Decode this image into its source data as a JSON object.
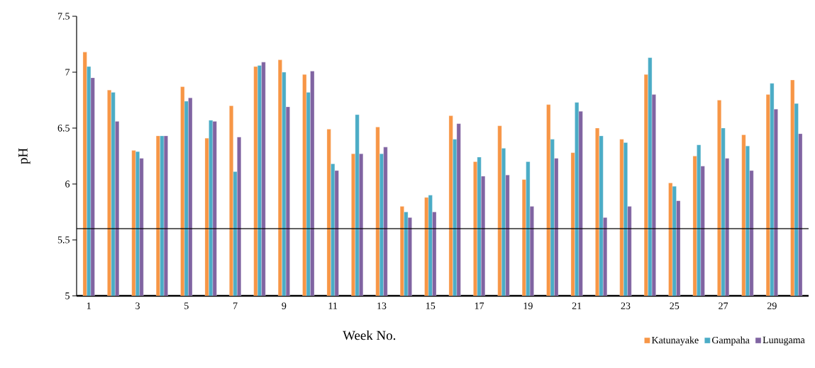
{
  "chart_data": {
    "type": "bar",
    "xlabel": "Week No.",
    "ylabel": "pH",
    "categories": [
      "1",
      null,
      "3",
      null,
      "5",
      null,
      "7",
      null,
      "9",
      null,
      "11",
      null,
      "13",
      null,
      "15",
      null,
      "17",
      null,
      "19",
      null,
      "21",
      null,
      "23",
      null,
      "25",
      null,
      "27",
      null,
      "29",
      null
    ],
    "series": [
      {
        "name": "Katunayake",
        "color": "#f79646",
        "values": [
          7.18,
          6.84,
          6.3,
          6.43,
          6.87,
          6.41,
          6.7,
          7.05,
          7.11,
          6.98,
          6.49,
          6.27,
          6.51,
          5.8,
          5.88,
          6.61,
          6.2,
          6.52,
          6.04,
          6.71,
          6.28,
          6.5,
          6.4,
          6.98,
          6.01,
          6.25,
          6.75,
          6.44,
          6.8,
          6.93
        ]
      },
      {
        "name": "Gampaha",
        "color": "#4bacc6",
        "values": [
          7.05,
          6.82,
          6.29,
          6.43,
          6.74,
          6.57,
          6.11,
          7.06,
          7.0,
          6.82,
          6.18,
          6.62,
          6.27,
          5.75,
          5.9,
          6.4,
          6.24,
          6.32,
          6.2,
          6.4,
          6.73,
          6.43,
          6.37,
          7.13,
          5.98,
          6.35,
          6.5,
          6.34,
          6.9,
          6.72
        ]
      },
      {
        "name": "Lunugama",
        "color": "#8064a2",
        "values": [
          6.95,
          6.56,
          6.23,
          6.43,
          6.77,
          6.56,
          6.42,
          7.09,
          6.69,
          7.01,
          6.12,
          6.27,
          6.33,
          5.7,
          5.75,
          6.54,
          6.07,
          6.08,
          5.8,
          6.23,
          6.65,
          5.7,
          5.8,
          6.8,
          5.85,
          6.16,
          6.23,
          6.12,
          6.67,
          6.45
        ]
      }
    ],
    "ylim": [
      5,
      7.5
    ],
    "yticks": [
      5,
      5.5,
      6,
      6.5,
      7,
      7.5
    ],
    "ref_lines": [
      {
        "axis": "y",
        "value": 5.6
      }
    ],
    "legend": "bottom right"
  }
}
